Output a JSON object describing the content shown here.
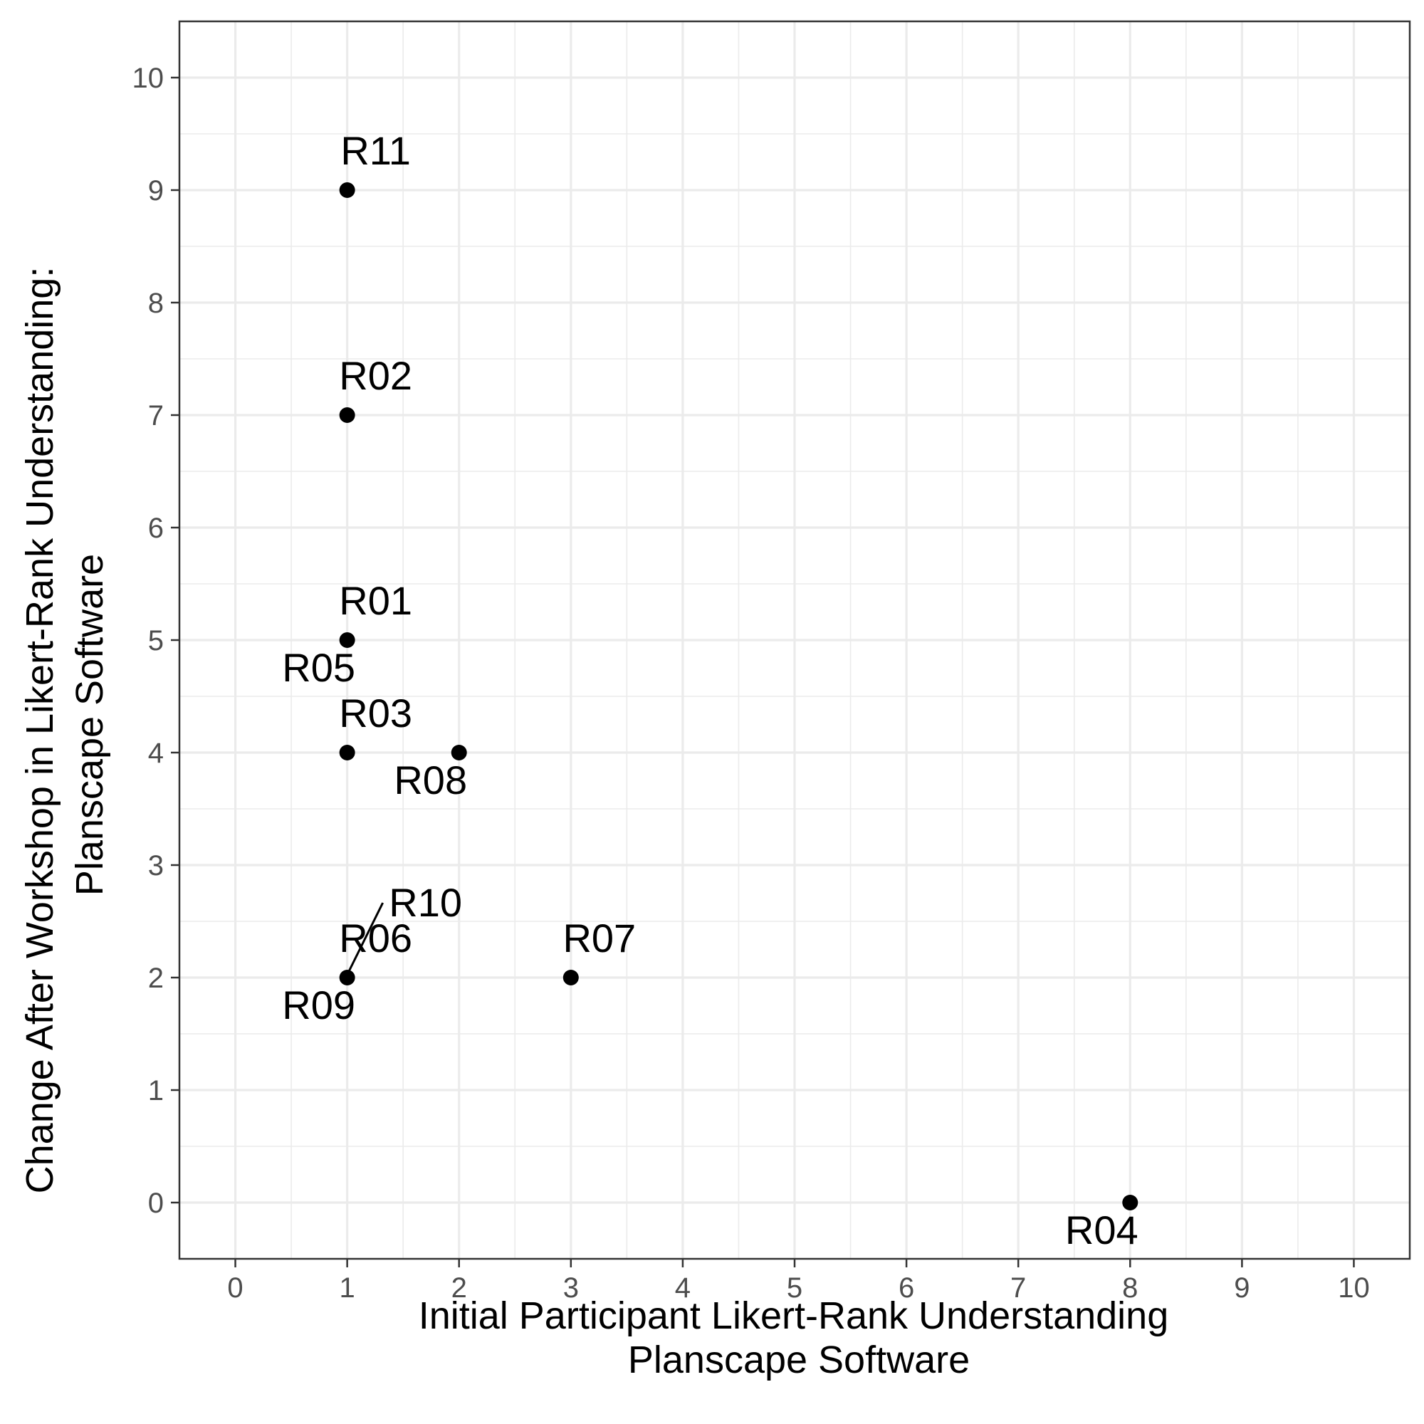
{
  "chart_data": {
    "type": "scatter",
    "title": "",
    "xlabel": [
      "Initial Participant Likert-Rank Understanding",
      "Planscape Software"
    ],
    "ylabel": [
      "Change After Workshop in Likert-Rank Understanding:",
      "Planscape Software"
    ],
    "xlim": [
      -0.5,
      10.5
    ],
    "ylim": [
      -0.5,
      10.5
    ],
    "xticks": [
      "0",
      "1",
      "2",
      "3",
      "4",
      "5",
      "6",
      "7",
      "8",
      "9",
      "10"
    ],
    "yticks": [
      "0",
      "1",
      "2",
      "3",
      "4",
      "5",
      "6",
      "7",
      "8",
      "9",
      "10"
    ],
    "grid": true,
    "legend": "none",
    "point_color": "#000000",
    "points": [
      {
        "label": "R11",
        "x": 1,
        "y": 9
      },
      {
        "label": "R02",
        "x": 1,
        "y": 7
      },
      {
        "label": "R01",
        "x": 1,
        "y": 5
      },
      {
        "label": "R05",
        "x": 1,
        "y": 5
      },
      {
        "label": "R03",
        "x": 1,
        "y": 4
      },
      {
        "label": "R08",
        "x": 2,
        "y": 4
      },
      {
        "label": "R10",
        "x": 1,
        "y": 2
      },
      {
        "label": "R06",
        "x": 1,
        "y": 2
      },
      {
        "label": "R09",
        "x": 1,
        "y": 2
      },
      {
        "label": "R07",
        "x": 3,
        "y": 2
      },
      {
        "label": "R04",
        "x": 8,
        "y": 0
      }
    ]
  }
}
